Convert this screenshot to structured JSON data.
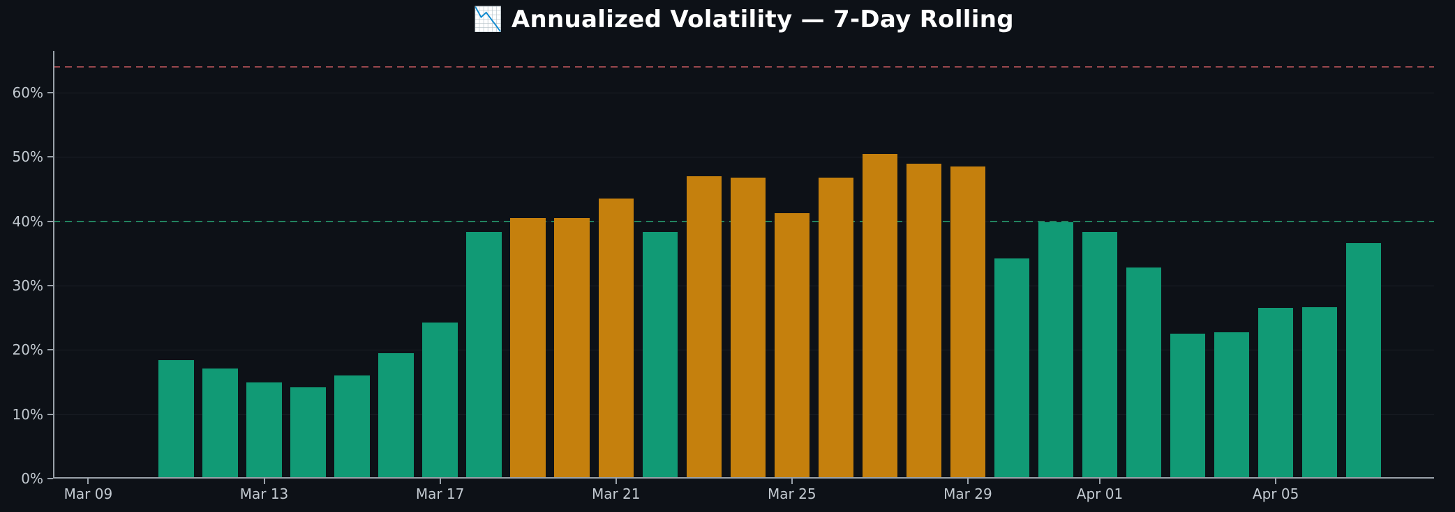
{
  "figure": {
    "background": "#0d1117"
  },
  "chart_data": {
    "type": "bar",
    "title": "📉 Annualized Volatility — 7-Day Rolling",
    "xlabel": "",
    "ylabel": "",
    "ylim": [
      0,
      66.5
    ],
    "x_domain": [
      -2.8,
      28.6
    ],
    "bar_width": 0.8,
    "grid": "horizontal-only",
    "legend_position": "none",
    "high_threshold": 40,
    "categories": [
      "Mar 11",
      "Mar 12",
      "Mar 13",
      "Mar 14",
      "Mar 15",
      "Mar 16",
      "Mar 17",
      "Mar 18",
      "Mar 19",
      "Mar 20",
      "Mar 21",
      "Mar 22",
      "Mar 23",
      "Mar 24",
      "Mar 25",
      "Mar 26",
      "Mar 27",
      "Mar 28",
      "Mar 29",
      "Mar 30",
      "Mar 31",
      "Apr 01",
      "Apr 02",
      "Apr 03",
      "Apr 04",
      "Apr 05",
      "Apr 06",
      "Apr 07"
    ],
    "values": [
      18.4,
      17.1,
      15.0,
      14.2,
      16.0,
      19.5,
      24.3,
      38.3,
      40.5,
      40.5,
      43.5,
      38.3,
      47.0,
      46.8,
      41.3,
      46.8,
      50.5,
      49.0,
      48.5,
      34.2,
      39.9,
      38.3,
      32.8,
      22.5,
      22.7,
      26.5,
      26.6,
      36.6
    ],
    "y_ticks": [
      {
        "value": 0,
        "label": "0%"
      },
      {
        "value": 10,
        "label": "10%"
      },
      {
        "value": 20,
        "label": "20%"
      },
      {
        "value": 30,
        "label": "30%"
      },
      {
        "value": 40,
        "label": "40%"
      },
      {
        "value": 50,
        "label": "50%"
      },
      {
        "value": 60,
        "label": "60%"
      }
    ],
    "x_ticks": [
      {
        "offset": -2,
        "label": "Mar 09"
      },
      {
        "offset": 2,
        "label": "Mar 13"
      },
      {
        "offset": 6,
        "label": "Mar 17"
      },
      {
        "offset": 10,
        "label": "Mar 21"
      },
      {
        "offset": 14,
        "label": "Mar 25"
      },
      {
        "offset": 18,
        "label": "Mar 29"
      },
      {
        "offset": 21,
        "label": "Apr 01"
      },
      {
        "offset": 25,
        "label": "Apr 05"
      }
    ],
    "hlines": [
      {
        "name": "upper-threshold-line",
        "value": 64,
        "color_key": "upper_threshold",
        "style": "dashed"
      },
      {
        "name": "vol-threshold-line",
        "value": 40,
        "color_key": "vol_threshold",
        "style": "dashed"
      }
    ],
    "colors": {
      "background": "#0d1117",
      "bar_normal": "#119a75",
      "bar_high": "#c5800d",
      "upper_threshold": "#99474d",
      "vol_threshold": "#22835f",
      "title": "#ffffff",
      "tick_label": "#c2c9d0",
      "spine": "#9aa2aa",
      "grid": "rgba(205,215,235,0.08)"
    }
  }
}
